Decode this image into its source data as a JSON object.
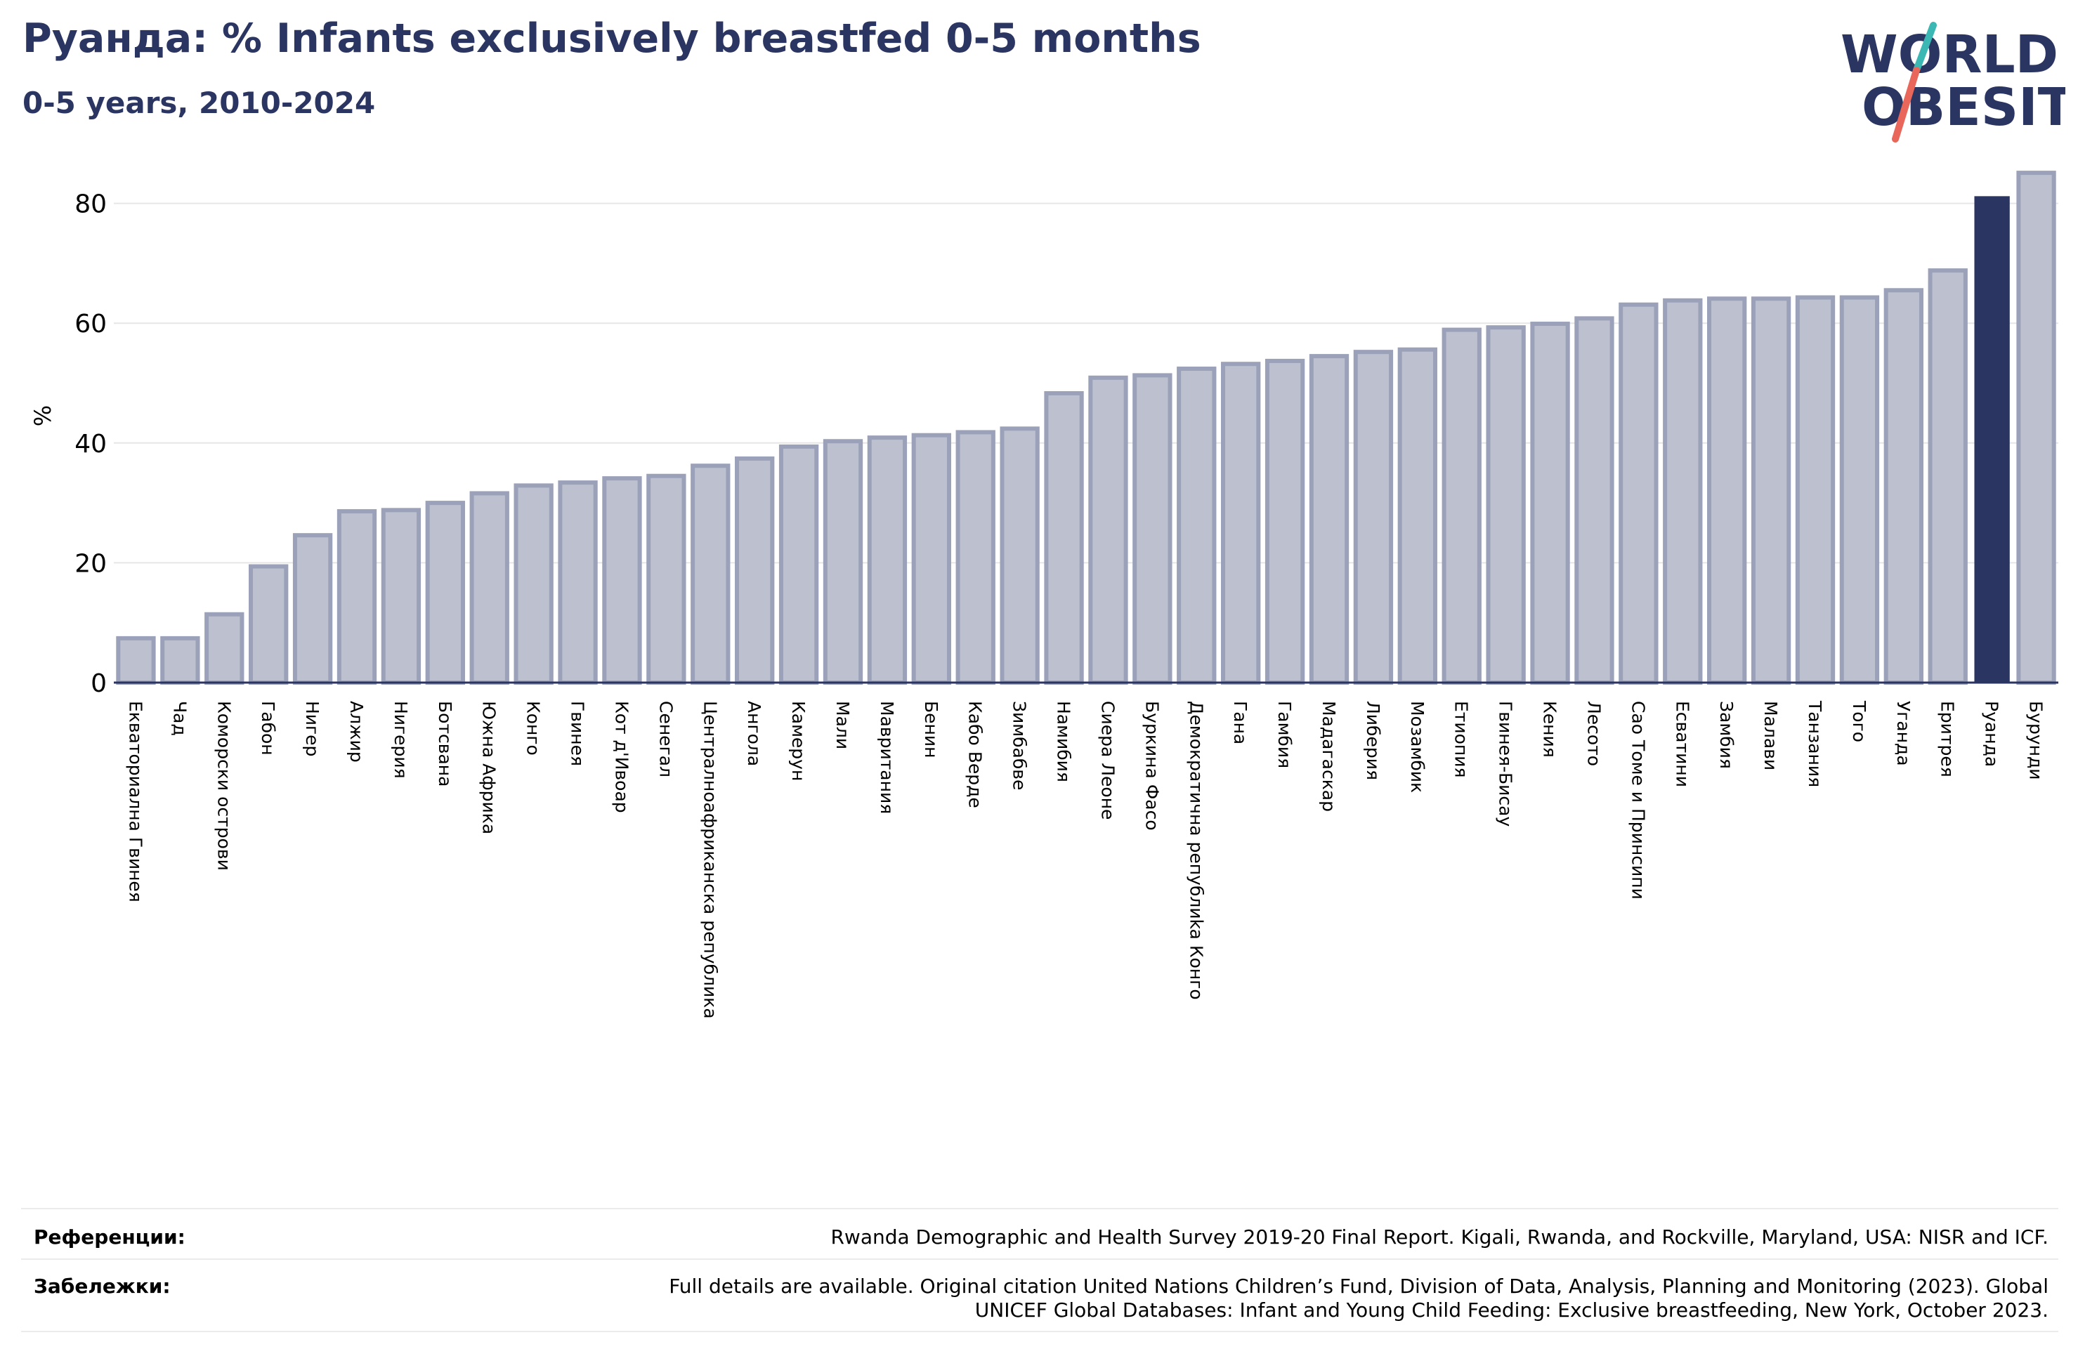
{
  "title": "Руанда: % Infants exclusively breastfed 0-5 months",
  "subtitle": "0-5 years, 2010-2024",
  "logo": {
    "line1": "WORLD",
    "line2": "OBESITY"
  },
  "colors": {
    "title": "#2b3561",
    "bar_fill": "#bcc0cf",
    "bar_stroke": "#9ba1b9",
    "highlight": "#2b3561",
    "logo_slash_teal": "#3bb7b4",
    "logo_slash_red": "#e8675a"
  },
  "chart_data": {
    "type": "bar",
    "ylabel": "%",
    "ylim": [
      0,
      88
    ],
    "yticks": [
      0,
      20,
      40,
      60,
      80
    ],
    "grid": true,
    "highlight": "Руанда",
    "categories": [
      "Екваториална Гвинея",
      "Чад",
      "Коморски острови",
      "Габон",
      "Нигер",
      "Алжир",
      "Нигерия",
      "Ботсвана",
      "Южна Африка",
      "Конго",
      "Гвинея",
      "Кот д'Ивоар",
      "Сенегал",
      "Централноафриканска република",
      "Ангола",
      "Камерун",
      "Мали",
      "Мавритания",
      "Бенин",
      "Кабо Верде",
      "Зимбабве",
      "Намибия",
      "Сиера Леоне",
      "Буркина Фасо",
      "Демократична републиka Конго",
      "Гана",
      "Гамбия",
      "Мадагаскар",
      "Либерия",
      "Мозамбик",
      "Етиопия",
      "Гвинея-Бисау",
      "Кения",
      "Лесото",
      "Сао Томе и Принсипи",
      "Есватини",
      "Замбия",
      "Малави",
      "Танзания",
      "Того",
      "Уганда",
      "Еритрея",
      "Руанда",
      "Бурунди"
    ],
    "values": [
      7.4,
      7.4,
      11.4,
      19.4,
      24.6,
      28.6,
      28.8,
      30.0,
      31.6,
      32.9,
      33.4,
      34.1,
      34.5,
      36.2,
      37.4,
      39.4,
      40.3,
      40.9,
      41.3,
      41.8,
      42.4,
      48.3,
      50.9,
      51.3,
      52.4,
      53.2,
      53.7,
      54.5,
      55.2,
      55.6,
      58.9,
      59.3,
      59.9,
      60.8,
      63.1,
      63.8,
      64.1,
      64.1,
      64.3,
      64.3,
      65.5,
      68.8,
      81.2,
      85.1
    ]
  },
  "footer": {
    "references_label": "Референции:",
    "references_text": "Rwanda Demographic and Health Survey 2019-20 Final Report. Kigali, Rwanda, and Rockville, Maryland, USA: NISR and ICF.",
    "notes_label": "Забележки:",
    "notes_line1": "Full details are available. Original citation United Nations Children’s Fund, Division of Data, Analysis, Planning and Monitoring (2023). Global",
    "notes_line2": "UNICEF Global Databases: Infant and Young Child Feeding: Exclusive breastfeeding, New York, October 2023."
  }
}
